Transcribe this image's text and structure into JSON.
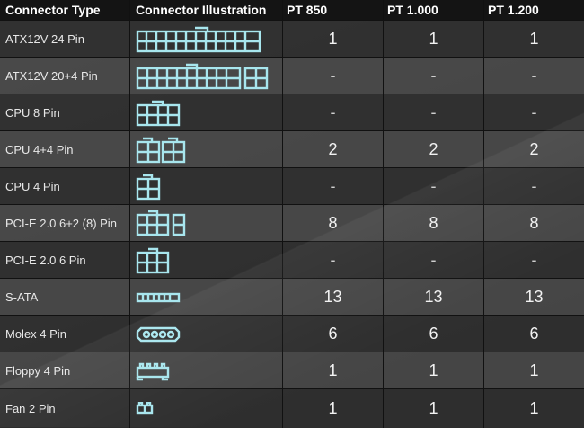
{
  "header": {
    "type": "Connector Type",
    "illustration": "Connector Illustration",
    "models": [
      "PT 850",
      "PT 1.000",
      "PT 1.200"
    ]
  },
  "colors": {
    "accent": "#a8e6ee",
    "header_bg": "#141414"
  },
  "rows": [
    {
      "type": "ATX12V 24 Pin",
      "icon": "atx-24-pin-icon",
      "values": [
        "1",
        "1",
        "1"
      ]
    },
    {
      "type": "ATX12V 20+4 Pin",
      "icon": "atx-20-4-pin-icon",
      "values": [
        "-",
        "-",
        "-"
      ]
    },
    {
      "type": "CPU 8 Pin",
      "icon": "cpu-8-pin-icon",
      "values": [
        "-",
        "-",
        "-"
      ]
    },
    {
      "type": "CPU 4+4 Pin",
      "icon": "cpu-4-4-pin-icon",
      "values": [
        "2",
        "2",
        "2"
      ]
    },
    {
      "type": "CPU 4 Pin",
      "icon": "cpu-4-pin-icon",
      "values": [
        "-",
        "-",
        "-"
      ]
    },
    {
      "type": "PCI-E 2.0 6+2 (8) Pin",
      "icon": "pcie-6-2-pin-icon",
      "values": [
        "8",
        "8",
        "8"
      ]
    },
    {
      "type": "PCI-E 2.0 6 Pin",
      "icon": "pcie-6-pin-icon",
      "values": [
        "-",
        "-",
        "-"
      ]
    },
    {
      "type": "S-ATA",
      "icon": "sata-icon",
      "values": [
        "13",
        "13",
        "13"
      ]
    },
    {
      "type": "Molex 4 Pin",
      "icon": "molex-4-pin-icon",
      "values": [
        "6",
        "6",
        "6"
      ]
    },
    {
      "type": "Floppy 4 Pin",
      "icon": "floppy-4-pin-icon",
      "values": [
        "1",
        "1",
        "1"
      ]
    },
    {
      "type": "Fan 2 Pin",
      "icon": "fan-2-pin-icon",
      "values": [
        "1",
        "1",
        "1"
      ]
    }
  ]
}
